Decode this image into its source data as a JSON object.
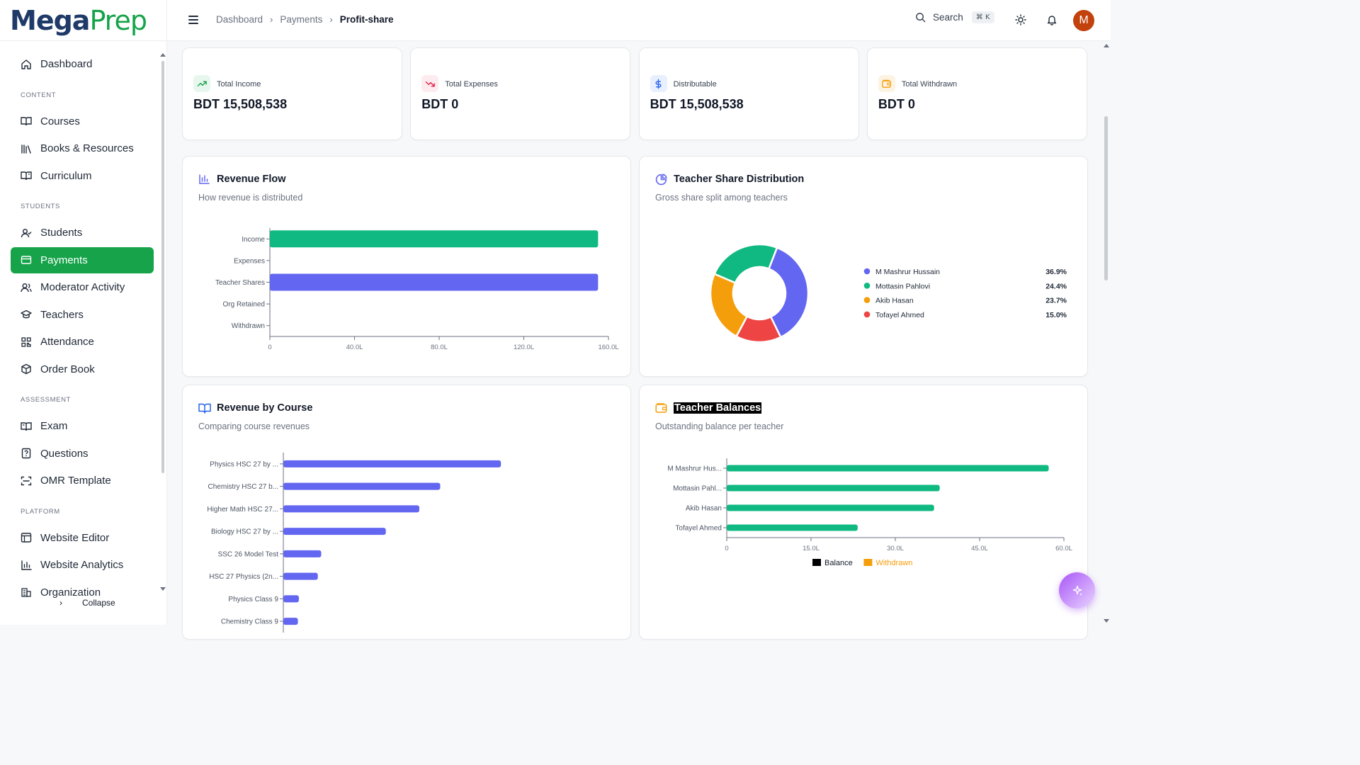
{
  "brand": {
    "part1": "Mega",
    "part2": "Prep"
  },
  "sidebar": {
    "items": [
      {
        "label": "Dashboard"
      },
      {
        "section": "CONTENT"
      },
      {
        "label": "Courses"
      },
      {
        "label": "Books & Resources"
      },
      {
        "label": "Curriculum"
      },
      {
        "section": "STUDENTS"
      },
      {
        "label": "Students"
      },
      {
        "label": "Payments"
      },
      {
        "label": "Moderator Activity"
      },
      {
        "label": "Teachers"
      },
      {
        "label": "Attendance"
      },
      {
        "label": "Order Book"
      },
      {
        "section": "ASSESSMENT"
      },
      {
        "label": "Exam"
      },
      {
        "label": "Questions"
      },
      {
        "label": "OMR Template"
      },
      {
        "section": "PLATFORM"
      },
      {
        "label": "Website Editor"
      },
      {
        "label": "Website Analytics"
      },
      {
        "label": "Organization"
      }
    ],
    "collapse_label": "Collapse"
  },
  "breadcrumb": {
    "items": [
      "Dashboard",
      "Payments"
    ],
    "current": "Profit-share"
  },
  "search": {
    "label": "Search",
    "shortcut": "⌘ K"
  },
  "avatar": {
    "initial": "M"
  },
  "stats": [
    {
      "label": "Total Income",
      "value": "BDT 15,508,538",
      "color": "#16a34a",
      "bg": "#e8f7ee"
    },
    {
      "label": "Total Expenses",
      "value": "BDT 0",
      "color": "#e11d48",
      "bg": "#fdecef"
    },
    {
      "label": "Distributable",
      "value": "BDT 15,508,538",
      "color": "#2563eb",
      "bg": "#e8efff"
    },
    {
      "label": "Total Withdrawn",
      "value": "BDT 0",
      "color": "#f59e0b",
      "bg": "#fdf3e2"
    }
  ],
  "charts": {
    "revenue_flow": {
      "title": "Revenue Flow",
      "subtitle": "How revenue is distributed"
    },
    "teacher_share": {
      "title": "Teacher Share Distribution",
      "subtitle": "Gross share split among teachers"
    },
    "revenue_by_course": {
      "title": "Revenue by Course",
      "subtitle": "Comparing course revenues"
    },
    "teacher_balances": {
      "title": "Teacher Balances",
      "subtitle": "Outstanding balance per teacher"
    }
  },
  "chart_data": [
    {
      "id": "revenue_flow",
      "type": "bar",
      "orientation": "horizontal",
      "categories": [
        "Income",
        "Expenses",
        "Teacher Shares",
        "Org Retained",
        "Withdrawn"
      ],
      "values": [
        155.1,
        0,
        155.1,
        0,
        0
      ],
      "colors": [
        "#10b981",
        "#6366f1",
        "#6366f1",
        "#6366f1",
        "#6366f1"
      ],
      "xlim": [
        0,
        160
      ],
      "xticks": [
        "0",
        "40.0L",
        "80.0L",
        "120.0L",
        "160.0L"
      ]
    },
    {
      "id": "teacher_share",
      "type": "pie",
      "donut": true,
      "labels": [
        "M Mashrur Hussain",
        "Mottasin Pahlovi",
        "Akib Hasan",
        "Tofayel Ahmed"
      ],
      "values": [
        36.9,
        24.4,
        23.7,
        15.0
      ],
      "display": [
        "36.9%",
        "24.4%",
        "23.7%",
        "15.0%"
      ],
      "colors": [
        "#6366f1",
        "#10b981",
        "#f59e0b",
        "#ef4444"
      ],
      "slice_order": [
        0,
        3,
        2,
        1
      ],
      "legend": "right"
    },
    {
      "id": "revenue_by_course",
      "type": "bar",
      "orientation": "horizontal",
      "categories": [
        "Physics HSC 27 by ...",
        "Chemistry HSC 27 b...",
        "Higher Math HSC 27...",
        "Biology HSC 27 by ...",
        "SSC 26 Model Test",
        "HSC 27 Physics (2n...",
        "Physics Class 9",
        "Chemistry Class 9"
      ],
      "values": [
        44.8,
        32.3,
        28.0,
        21.1,
        7.8,
        7.1,
        3.2,
        3.0
      ],
      "color": "#6366f1"
    },
    {
      "id": "teacher_balances",
      "type": "bar",
      "orientation": "horizontal",
      "categories": [
        "M Mashrur Hus...",
        "Mottasin Pahl...",
        "Akib Hasan",
        "Tofayel Ahmed"
      ],
      "series": [
        {
          "name": "Balance",
          "values": [
            57.3,
            37.9,
            36.9,
            23.3
          ],
          "color": "#10b981"
        },
        {
          "name": "Withdrawn",
          "values": [
            0,
            0,
            0,
            0
          ],
          "color": "#f59e0b"
        }
      ],
      "xlim": [
        0,
        60
      ],
      "xticks": [
        "0",
        "15.0L",
        "30.0L",
        "45.0L",
        "60.0L"
      ],
      "legend": "bottom",
      "legend_swatches": [
        "#000000",
        "#f59e0b"
      ],
      "legend_text_colors": [
        "#111827",
        "#f59e0b"
      ]
    }
  ]
}
